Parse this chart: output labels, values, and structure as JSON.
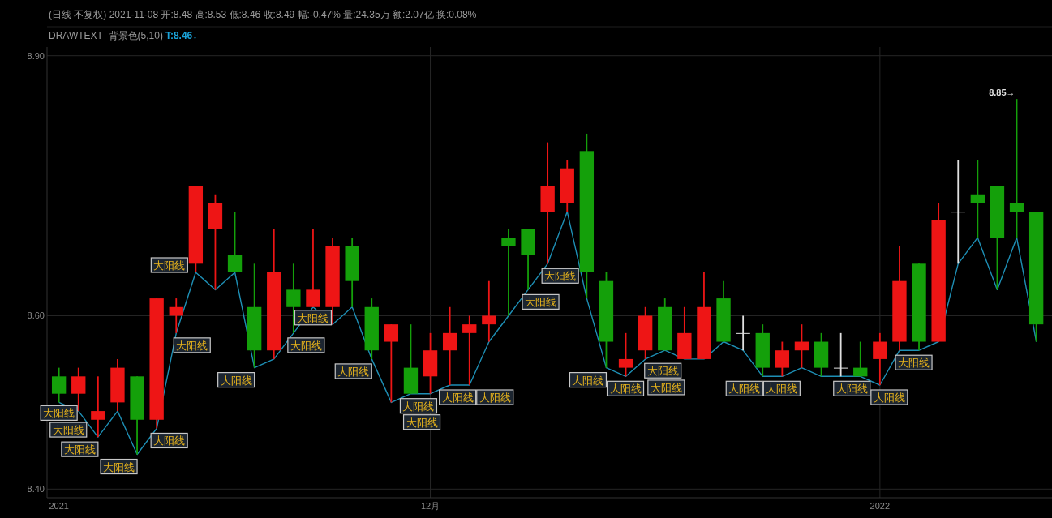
{
  "chart_data": {
    "type": "candlestick",
    "title": "(日线 不复权) 2021-11-08 开:8.48 高:8.53 低:8.46 收:8.49 幅:-0.47% 量:24.35万 额:2.07亿 换:0.08%",
    "subtitle": "DRAWTEXT_背景色(5,10)",
    "annotations": [
      "T:8.46↓",
      "8.85→"
    ],
    "categories": [
      "2021",
      null,
      null,
      null,
      null,
      null,
      null,
      null,
      null,
      null,
      null,
      null,
      null,
      null,
      null,
      null,
      null,
      null,
      null,
      "12月",
      null,
      null,
      null,
      null,
      null,
      null,
      null,
      null,
      null,
      null,
      null,
      null,
      null,
      null,
      null,
      null,
      null,
      null,
      null,
      null,
      null,
      null,
      "2022",
      null,
      null,
      null,
      null,
      null,
      null,
      null,
      null
    ],
    "ohlc": [
      [
        8.53,
        8.54,
        8.5,
        8.51
      ],
      [
        8.51,
        8.54,
        8.49,
        8.53
      ],
      [
        8.48,
        8.53,
        8.46,
        8.49
      ],
      [
        8.5,
        8.55,
        8.49,
        8.54
      ],
      [
        8.53,
        8.53,
        8.44,
        8.48
      ],
      [
        8.48,
        8.62,
        8.47,
        8.62
      ],
      [
        8.6,
        8.62,
        8.58,
        8.61
      ],
      [
        8.66,
        8.75,
        8.65,
        8.75
      ],
      [
        8.7,
        8.74,
        8.63,
        8.73
      ],
      [
        8.67,
        8.72,
        8.65,
        8.65
      ],
      [
        8.61,
        8.66,
        8.54,
        8.56
      ],
      [
        8.56,
        8.7,
        8.55,
        8.65
      ],
      [
        8.63,
        8.66,
        8.58,
        8.61
      ],
      [
        8.61,
        8.7,
        8.61,
        8.63
      ],
      [
        8.61,
        8.69,
        8.59,
        8.68
      ],
      [
        8.68,
        8.69,
        8.61,
        8.64
      ],
      [
        8.61,
        8.62,
        8.55,
        8.56
      ],
      [
        8.57,
        8.59,
        8.5,
        8.59
      ],
      [
        8.54,
        8.59,
        8.51,
        8.51
      ],
      [
        8.53,
        8.58,
        8.51,
        8.56
      ],
      [
        8.56,
        8.61,
        8.52,
        8.58
      ],
      [
        8.58,
        8.6,
        8.52,
        8.59
      ],
      [
        8.59,
        8.64,
        8.57,
        8.6
      ],
      [
        8.69,
        8.7,
        8.6,
        8.68
      ],
      [
        8.7,
        8.7,
        8.63,
        8.67
      ],
      [
        8.72,
        8.8,
        8.66,
        8.75
      ],
      [
        8.73,
        8.78,
        8.72,
        8.77
      ],
      [
        8.79,
        8.81,
        8.62,
        8.65
      ],
      [
        8.64,
        8.65,
        8.54,
        8.57
      ],
      [
        8.54,
        8.58,
        8.53,
        8.55
      ],
      [
        8.56,
        8.61,
        8.55,
        8.6
      ],
      [
        8.61,
        8.62,
        8.56,
        8.56
      ],
      [
        8.55,
        8.61,
        8.55,
        8.58
      ],
      [
        8.55,
        8.65,
        8.55,
        8.61
      ],
      [
        8.62,
        8.64,
        8.57,
        8.57
      ],
      [
        8.58,
        8.6,
        8.56,
        8.58
      ],
      [
        8.58,
        8.59,
        8.53,
        8.54
      ],
      [
        8.54,
        8.57,
        8.53,
        8.56
      ],
      [
        8.56,
        8.59,
        8.54,
        8.57
      ],
      [
        8.57,
        8.58,
        8.53,
        8.54
      ],
      [
        8.54,
        8.58,
        8.53,
        8.54
      ],
      [
        8.54,
        8.57,
        8.53,
        8.53
      ],
      [
        8.55,
        8.58,
        8.52,
        8.57
      ],
      [
        8.57,
        8.68,
        8.56,
        8.64
      ],
      [
        8.66,
        8.66,
        8.56,
        8.57
      ],
      [
        8.57,
        8.73,
        8.57,
        8.71
      ],
      [
        8.72,
        8.78,
        8.66,
        8.72
      ],
      [
        8.74,
        8.78,
        8.69,
        8.73
      ],
      [
        8.75,
        8.75,
        8.63,
        8.69
      ],
      [
        8.73,
        8.85,
        8.69,
        8.72
      ],
      [
        8.72,
        8.72,
        8.57,
        8.59
      ]
    ],
    "colors": [
      "#14a00a",
      "#ee1515",
      "#ee1515",
      "#ee1515",
      "#14a00a",
      "#ee1515",
      "#ee1515",
      "#ee1515",
      "#ee1515",
      "#14a00a",
      "#14a00a",
      "#ee1515",
      "#14a00a",
      "#ee1515",
      "#ee1515",
      "#14a00a",
      "#14a00a",
      "#ee1515",
      "#14a00a",
      "#ee1515",
      "#ee1515",
      "#ee1515",
      "#ee1515",
      "#14a00a",
      "#14a00a",
      "#ee1515",
      "#ee1515",
      "#14a00a",
      "#14a00a",
      "#ee1515",
      "#ee1515",
      "#14a00a",
      "#ee1515",
      "#ee1515",
      "#14a00a",
      "#e0e0e0",
      "#14a00a",
      "#ee1515",
      "#ee1515",
      "#14a00a",
      "#e0e0e0",
      "#14a00a",
      "#ee1515",
      "#ee1515",
      "#14a00a",
      "#ee1515",
      "#e0e0e0",
      "#14a00a",
      "#14a00a",
      "#14a00a",
      "#14a00a"
    ],
    "series": [
      {
        "type": "line",
        "color": "#1e8fb5",
        "values": [
          8.5,
          8.49,
          8.46,
          8.49,
          8.44,
          8.47,
          8.58,
          8.65,
          8.63,
          8.65,
          8.54,
          8.55,
          8.58,
          8.61,
          8.59,
          8.61,
          8.55,
          8.5,
          8.51,
          8.51,
          8.52,
          8.52,
          8.57,
          8.6,
          8.63,
          8.66,
          8.72,
          8.62,
          8.54,
          8.53,
          8.55,
          8.56,
          8.55,
          8.55,
          8.57,
          8.56,
          8.53,
          8.53,
          8.54,
          8.53,
          8.53,
          8.53,
          8.52,
          8.56,
          8.56,
          8.57,
          8.66,
          8.69,
          8.63,
          8.69,
          8.57
        ],
        "value_labels": [
          "大阳线",
          "大阳线",
          "大阳线",
          null,
          "大阳线",
          "大阳线",
          "大阳线",
          "大阳线",
          null,
          null,
          "大阳线",
          null,
          "大阳线",
          "大阳线",
          null,
          null,
          "大阳线",
          null,
          "大阳线",
          "大阳线",
          "大阳线",
          "大阳线",
          null,
          null,
          "大阳线",
          "大阳线",
          null,
          null,
          "大阳线",
          "大阳线",
          null,
          "大阳线",
          "大阳线",
          null,
          null,
          null,
          "大阳线",
          "大阳线",
          null,
          null,
          null,
          "大阳线",
          "大阳线",
          null,
          "大阳线",
          null,
          null,
          null,
          null,
          null,
          null
        ]
      }
    ],
    "ylim": [
      8.39,
      8.91
    ],
    "yticks": [
      {
        "value": 8.4,
        "label": "8.40"
      },
      {
        "value": 8.6,
        "label": "8.60"
      },
      {
        "value": 8.9,
        "label": "8.90"
      }
    ],
    "grid": true
  }
}
